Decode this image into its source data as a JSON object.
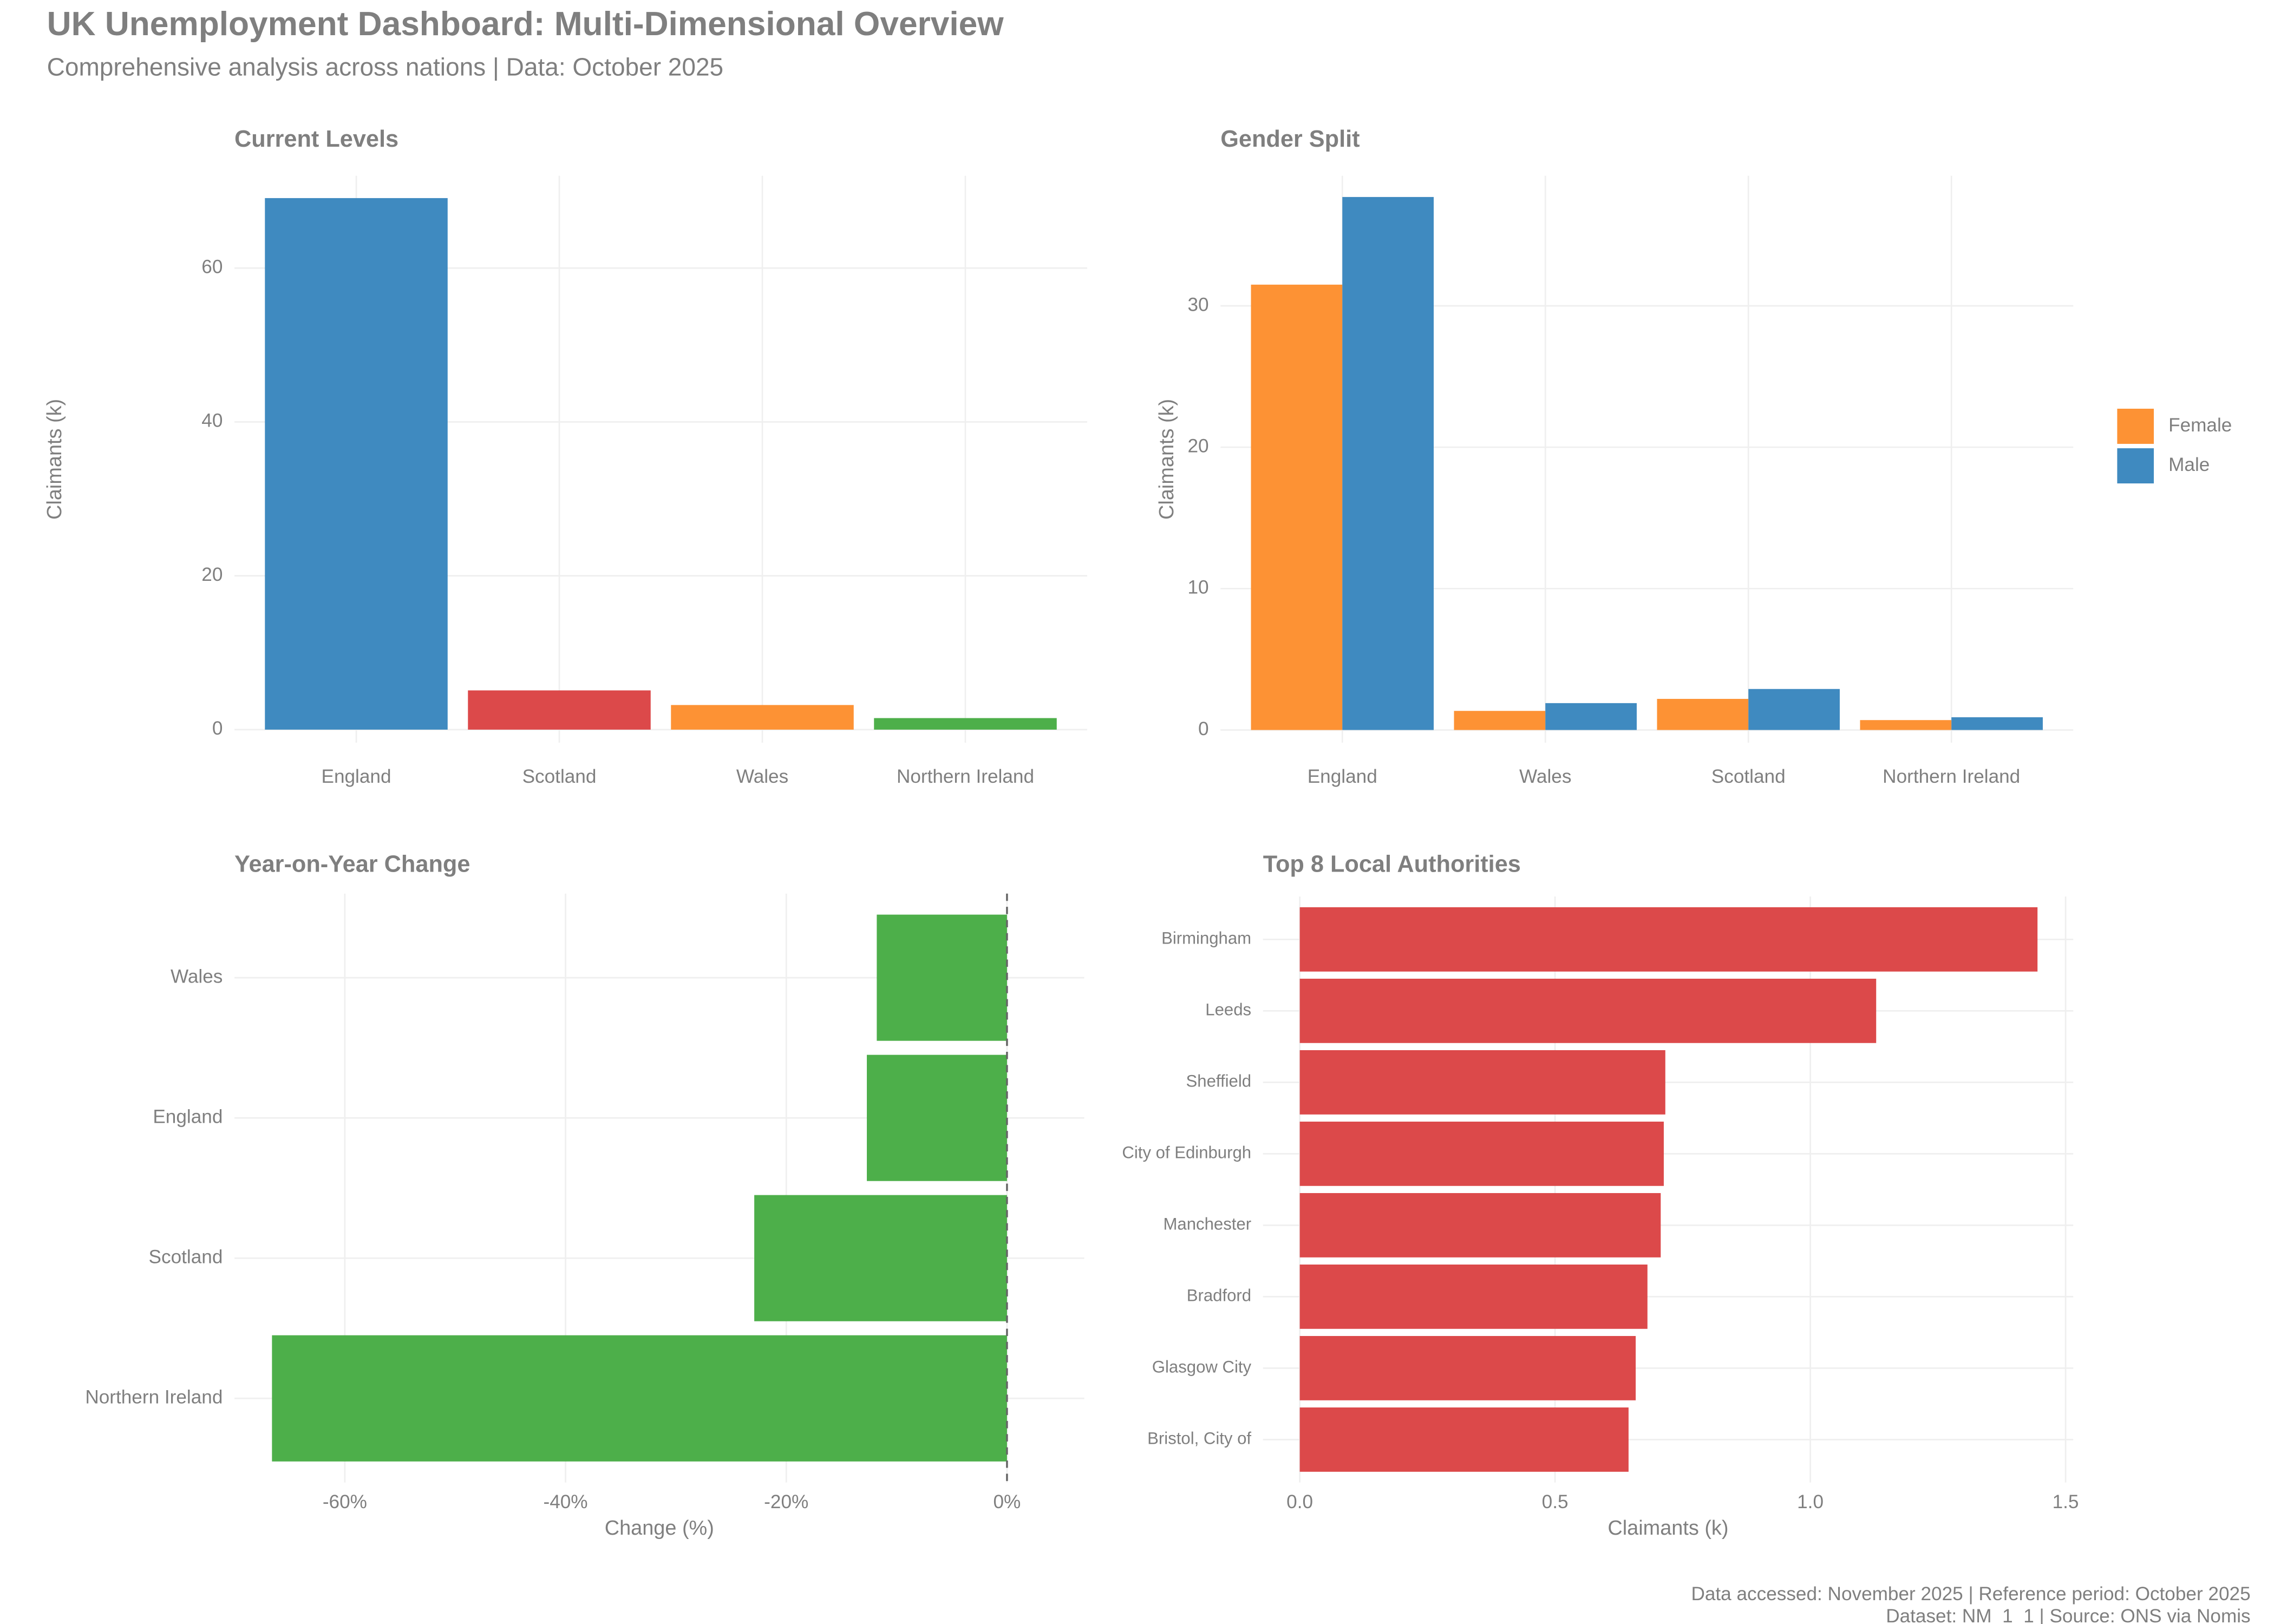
{
  "title": "UK Unemployment Dashboard: Multi-Dimensional Overview",
  "subtitle": "Comprehensive analysis across nations | Data: October 2025",
  "footer": [
    "Data accessed: November 2025 | Reference period: October 2025",
    "Dataset: NM_1_1 | Source: ONS via Nomis"
  ],
  "chart_data": [
    {
      "type": "bar",
      "title": "Current Levels",
      "y_label": "Claimants (k)",
      "categories": [
        "England",
        "Scotland",
        "Wales",
        "Northern Ireland"
      ],
      "values": [
        69.1,
        5.1,
        3.2,
        1.5
      ],
      "colors": [
        "#3f8ac0",
        "#dc494a",
        "#fd9234",
        "#4daf4a"
      ],
      "ylim": [
        -1.7,
        72
      ],
      "yticks": [
        0,
        20,
        40,
        60
      ],
      "grid": true
    },
    {
      "type": "bar",
      "title": "Gender Split",
      "y_label": "Claimants (k)",
      "categories": [
        "England",
        "Wales",
        "Scotland",
        "Northern Ireland"
      ],
      "series": [
        {
          "name": "Female",
          "color": "#fd9234",
          "values": [
            31.5,
            1.35,
            2.2,
            0.7
          ]
        },
        {
          "name": "Male",
          "color": "#3f8ac0",
          "values": [
            37.7,
            1.9,
            2.9,
            0.9
          ]
        }
      ],
      "ylim": [
        -0.9,
        39.2
      ],
      "yticks": [
        0,
        10,
        20,
        30
      ],
      "grid": true,
      "legend": "right"
    },
    {
      "type": "barh",
      "title": "Year-on-Year Change",
      "x_label": "Change (%)",
      "categories": [
        "Wales",
        "England",
        "Scotland",
        "Northern Ireland"
      ],
      "values": [
        -11.8,
        -12.7,
        -22.9,
        -66.6
      ],
      "color": "#4daf4a",
      "xlim": [
        -70,
        7
      ],
      "xticks": [
        {
          "value": -60,
          "label": "-60%"
        },
        {
          "value": -40,
          "label": "-40%"
        },
        {
          "value": -20,
          "label": "-20%"
        },
        {
          "value": 0,
          "label": "0%"
        }
      ],
      "grid": true,
      "zero_line": true
    },
    {
      "type": "barh",
      "title": "Top 8 Local Authorities",
      "x_label": "Claimants (k)",
      "categories": [
        "Birmingham",
        "Leeds",
        "Sheffield",
        "City of Edinburgh",
        "Manchester",
        "Bradford",
        "Glasgow City",
        "Bristol, City of"
      ],
      "values": [
        1.445,
        1.129,
        0.716,
        0.713,
        0.707,
        0.681,
        0.658,
        0.644
      ],
      "color": "#dc494a",
      "xlim": [
        -0.072,
        1.515
      ],
      "xticks": [
        {
          "value": 0,
          "label": "0.0"
        },
        0.5,
        {
          "value": 1,
          "label": "1.0"
        },
        1.5
      ],
      "grid": true
    }
  ]
}
